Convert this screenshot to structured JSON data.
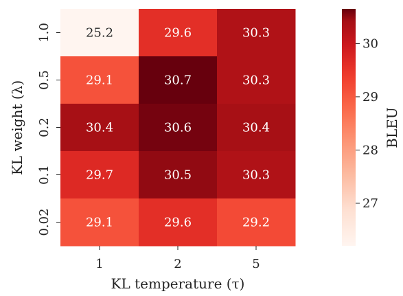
{
  "chart_data": {
    "type": "heatmap",
    "title": "",
    "xlabel": "KL temperature (τ)",
    "ylabel": "KL weight (λ)",
    "x_categories": [
      "1",
      "2",
      "5"
    ],
    "y_categories": [
      "1.0",
      "0.5",
      "0.2",
      "0.1",
      "0.02"
    ],
    "values": [
      [
        25.2,
        29.6,
        30.3
      ],
      [
        29.1,
        30.7,
        30.3
      ],
      [
        30.4,
        30.6,
        30.4
      ],
      [
        29.7,
        30.5,
        30.3
      ],
      [
        29.1,
        29.6,
        29.2
      ]
    ],
    "colorbar": {
      "label": "BLEU",
      "ticks": [
        "27",
        "28",
        "29",
        "30"
      ],
      "range": [
        26.2,
        30.65
      ],
      "colormap": "Reds"
    },
    "grid": false
  }
}
